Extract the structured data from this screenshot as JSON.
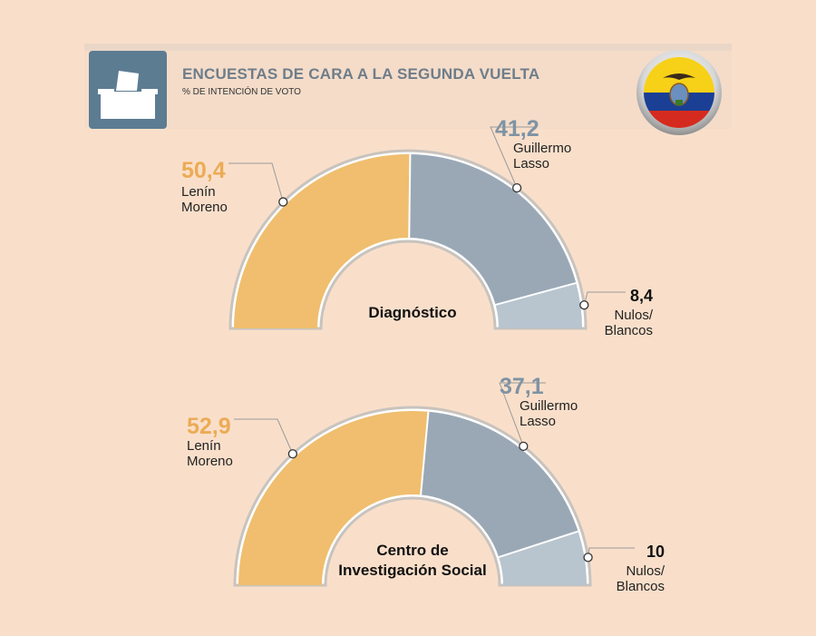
{
  "header": {
    "title": "ENCUESTAS DE CARA A LA SEGUNDA VUELTA",
    "subtitle": "% DE INTENCIÓN DE VOTO",
    "icon": "ballot-box-icon",
    "flag_icon": "ecuador-flag-icon"
  },
  "colors": {
    "moreno": "#f0be6e",
    "lasso": "#9aa8b6",
    "nulos": "#b8c4ce",
    "moreno_text": "#ecab55",
    "lasso_text": "#7f93a4",
    "outline": "#c8c3be"
  },
  "chart_data": [
    {
      "type": "pie",
      "variant": "half-donut",
      "title": "Diagnóstico",
      "segments": [
        {
          "name": "Lenín Moreno",
          "value": 50.4,
          "label": "50,4"
        },
        {
          "name": "Guillermo Lasso",
          "value": 41.2,
          "label": "41,2"
        },
        {
          "name": "Nulos/ Blancos",
          "value": 8.4,
          "label": "8,4"
        }
      ]
    },
    {
      "type": "pie",
      "variant": "half-donut",
      "title": "Centro de Investigación Social",
      "segments": [
        {
          "name": "Lenín Moreno",
          "value": 52.9,
          "label": "52,9"
        },
        {
          "name": "Guillermo Lasso",
          "value": 37.1,
          "label": "37,1"
        },
        {
          "name": "Nulos/ Blancos",
          "value": 10,
          "label": "10"
        }
      ]
    }
  ],
  "charts_text": [
    {
      "center_lines": [
        "Diagnóstico"
      ],
      "moreno_lines": [
        "Lenín",
        "Moreno"
      ],
      "lasso_lines": [
        "Guillermo",
        "Lasso"
      ],
      "nulos_lines": [
        "Nulos/",
        "Blancos"
      ]
    },
    {
      "center_lines": [
        "Centro de",
        "Investigación Social"
      ],
      "moreno_lines": [
        "Lenín",
        "Moreno"
      ],
      "lasso_lines": [
        "Guillermo",
        "Lasso"
      ],
      "nulos_lines": [
        "Nulos/",
        "Blancos"
      ]
    }
  ]
}
